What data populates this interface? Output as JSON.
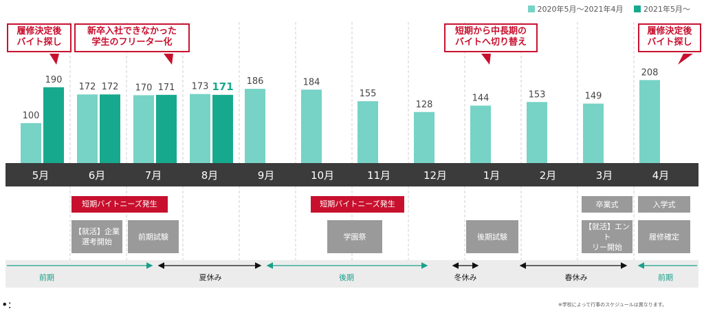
{
  "chart_data": {
    "type": "bar",
    "categories": [
      "5月",
      "6月",
      "7月",
      "8月",
      "9月",
      "10月",
      "11月",
      "12月",
      "1月",
      "2月",
      "3月",
      "4月"
    ],
    "series": [
      {
        "name": "2020年5月〜2021年4月",
        "color": "#76d3c5",
        "values": [
          100,
          172,
          170,
          173,
          186,
          184,
          155,
          128,
          144,
          153,
          149,
          208
        ]
      },
      {
        "name": "2021年5月〜",
        "color": "#17a98e",
        "values": [
          190,
          172,
          171,
          171,
          null,
          null,
          null,
          null,
          null,
          null,
          null,
          null
        ]
      }
    ],
    "data_labels": [
      "100",
      "190",
      "172",
      "172",
      "170",
      "171",
      "173",
      "171",
      "186",
      "184",
      "155",
      "128",
      "144",
      "153",
      "149",
      "208"
    ],
    "highlight_label_color": "#17a98e"
  },
  "legend": {
    "items": [
      {
        "label": "2020年5月〜2021年4月",
        "color": "#76d3c5"
      },
      {
        "label": "2021年5月〜",
        "color": "#17a98e"
      }
    ]
  },
  "callouts": [
    {
      "text": "履修決定後\nバイト探し"
    },
    {
      "text": "新卒入社できなかった\n学生のフリーター化"
    },
    {
      "text": "短期から中長期の\nバイトへ切り替え"
    },
    {
      "text": "履修決定後\nバイト探し"
    }
  ],
  "events": {
    "red": [
      "短期バイトニーズ発生",
      "短期バイトニーズ発生"
    ],
    "grey": [
      "【就活】企業\n選考開始",
      "前期試験",
      "学園祭",
      "後期試験",
      "卒業式",
      "【就活】エント\nリー開始",
      "入学式",
      "履修確定"
    ]
  },
  "terms": [
    "前期",
    "夏休み",
    "後期",
    "冬休み",
    "春休み",
    "前期"
  ],
  "footnote": "※学校によって行事のスケジュールは異なります。",
  "bullet": "•:",
  "colors": {
    "band": "#3b3b3b",
    "red": "#c8102e",
    "teal_arrow": "#1aa08a",
    "dark_arrow": "#111111"
  }
}
